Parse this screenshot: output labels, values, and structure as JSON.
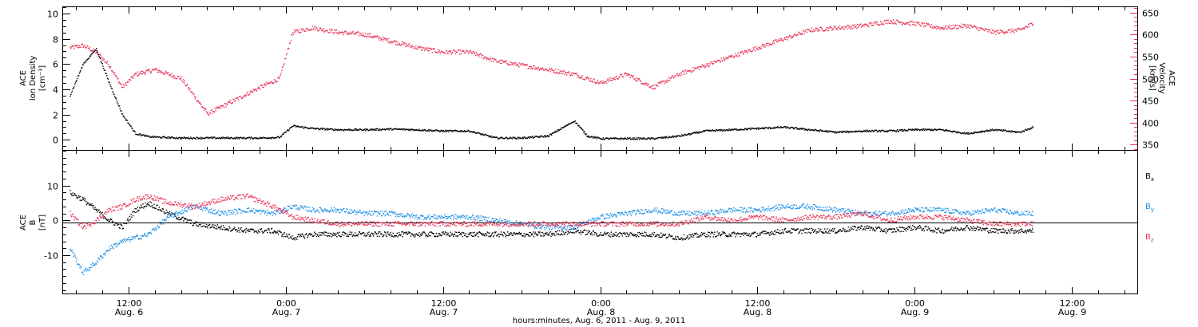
{
  "chart_data": {
    "type": "scatter",
    "xlabel": "hours:minutes, Aug.  6, 2011 - Aug.  9, 2011",
    "x_time_range": [
      "Aug. 6, 2011 07:00",
      "Aug. 9, 2011 17:00"
    ],
    "x_ticks": [
      {
        "time": "12:00",
        "date": "Aug. 6"
      },
      {
        "time": "0:00",
        "date": "Aug. 7"
      },
      {
        "time": "12:00",
        "date": "Aug. 7"
      },
      {
        "time": "0:00",
        "date": "Aug. 8"
      },
      {
        "time": "12:00",
        "date": "Aug. 8"
      },
      {
        "time": "0:00",
        "date": "Aug. 9"
      },
      {
        "time": "12:00",
        "date": "Aug. 9"
      }
    ],
    "x_tick_hours": [
      12,
      24,
      36,
      48,
      60,
      72,
      84
    ],
    "panels": [
      {
        "id": "plasma",
        "left_axis": {
          "label_lines": [
            "ACE",
            "Ion Density",
            "[cm⁻³]"
          ],
          "ylim": [
            -0.8,
            10.5
          ],
          "ticks": [
            0,
            2,
            4,
            6,
            8,
            10
          ]
        },
        "right_axis": {
          "label_lines": [
            "ACE",
            "Velocity",
            "[km/s]"
          ],
          "ylim": [
            338,
            662
          ],
          "ticks": [
            350,
            400,
            450,
            500,
            550,
            600,
            650
          ],
          "color": "#e8365a"
        },
        "series": [
          {
            "axis": "left",
            "color": "#000000",
            "hours": [
              7.5,
              8.5,
              9.5,
              10.5,
              11.5,
              12.5,
              13.5,
              14.5,
              16,
              18,
              20,
              22,
              23.5,
              24.5,
              26,
              28,
              30,
              32,
              34,
              36,
              38,
              40,
              42,
              44,
              46,
              47,
              48,
              50,
              52,
              54,
              56,
              58,
              60,
              62,
              64,
              66,
              68,
              70,
              72,
              74,
              76,
              78,
              80,
              81
            ],
            "values": [
              3.5,
              6.0,
              7.2,
              4.5,
              2.0,
              0.5,
              0.25,
              0.2,
              0.15,
              0.15,
              0.15,
              0.15,
              0.2,
              1.1,
              0.9,
              0.8,
              0.8,
              0.85,
              0.8,
              0.7,
              0.7,
              0.15,
              0.15,
              0.3,
              1.5,
              0.3,
              0.1,
              0.1,
              0.1,
              0.3,
              0.7,
              0.8,
              0.9,
              1.0,
              0.8,
              0.6,
              0.7,
              0.7,
              0.8,
              0.8,
              0.5,
              0.8,
              0.6,
              1.0
            ]
          },
          {
            "axis": "right",
            "color": "#e8365a",
            "hours": [
              7.5,
              8.5,
              9.5,
              10.5,
              11.5,
              12.5,
              14,
              16,
              18,
              20,
              22,
              23.5,
              24.5,
              26,
              28,
              30,
              32,
              34,
              36,
              38,
              40,
              42,
              44,
              46,
              48,
              50,
              52,
              54,
              56,
              58,
              60,
              62,
              64,
              66,
              68,
              70,
              72,
              74,
              76,
              78,
              80,
              81
            ],
            "values": [
              570,
              575,
              560,
              530,
              480,
              510,
              520,
              500,
              420,
              450,
              480,
              500,
              605,
              615,
              605,
              600,
              585,
              570,
              560,
              560,
              540,
              530,
              520,
              510,
              490,
              510,
              480,
              510,
              530,
              550,
              570,
              590,
              610,
              615,
              620,
              630,
              625,
              615,
              620,
              605,
              610,
              625
            ]
          }
        ]
      },
      {
        "id": "magnetic",
        "left_axis": {
          "label_lines": [
            "ACE",
            "B",
            "[nT]"
          ],
          "ylim": [
            -21,
            20
          ],
          "ticks": [
            -10,
            0,
            10
          ],
          "zero_line": true
        },
        "legend": [
          {
            "text": "Bx",
            "base": "B",
            "sub": "x",
            "color": "#000000"
          },
          {
            "text": "By",
            "base": "B",
            "sub": "y",
            "color": "#1e90e6"
          },
          {
            "text": "Bz",
            "base": "B",
            "sub": "z",
            "color": "#e8365a"
          }
        ],
        "series": [
          {
            "name": "Bx",
            "color": "#000000",
            "hours": [
              7.5,
              8.5,
              9.5,
              10.5,
              11.5,
              12.5,
              13.5,
              15,
              17,
              19,
              21,
              23,
              24.5,
              26,
              28,
              30,
              32,
              34,
              36,
              38,
              40,
              42,
              44,
              46,
              48,
              50,
              52,
              54,
              56,
              58,
              60,
              62,
              64,
              66,
              68,
              70,
              72,
              74,
              76,
              78,
              80,
              81
            ],
            "values": [
              8,
              6,
              3,
              0,
              -2,
              3,
              5,
              2,
              -1,
              -2,
              -3,
              -3,
              -5,
              -4,
              -4,
              -4,
              -4,
              -4,
              -4,
              -4,
              -4,
              -4,
              -4,
              -3,
              -4,
              -4,
              -4,
              -5,
              -4,
              -4,
              -4,
              -3,
              -3,
              -3,
              -2,
              -3,
              -2,
              -3,
              -2,
              -3,
              -3,
              -3
            ]
          },
          {
            "name": "By",
            "color": "#1e90e6",
            "hours": [
              7.5,
              8.5,
              9.5,
              10.5,
              11.5,
              12.5,
              13.5,
              15,
              17,
              19,
              21,
              23,
              24.5,
              26,
              28,
              30,
              32,
              34,
              36,
              38,
              40,
              42,
              44,
              46,
              48,
              50,
              52,
              54,
              56,
              58,
              60,
              62,
              64,
              66,
              68,
              70,
              72,
              74,
              76,
              78,
              80,
              81
            ],
            "values": [
              -8,
              -15,
              -12,
              -8,
              -6,
              -5,
              -4,
              1,
              4,
              2,
              3,
              2,
              4,
              3,
              3,
              2,
              2,
              1,
              1,
              1,
              0,
              -1,
              -2,
              -2,
              1,
              2,
              3,
              2,
              2,
              3,
              3,
              4,
              4,
              3,
              2,
              2,
              3,
              3,
              2,
              3,
              2,
              2
            ]
          },
          {
            "name": "Bz",
            "color": "#e8365a",
            "hours": [
              7.5,
              8.5,
              9.5,
              10.5,
              11.5,
              12.5,
              13.5,
              15,
              17,
              19,
              21,
              23,
              24.5,
              26,
              28,
              30,
              32,
              34,
              36,
              38,
              40,
              42,
              44,
              46,
              48,
              50,
              52,
              54,
              56,
              58,
              60,
              62,
              64,
              66,
              68,
              70,
              72,
              74,
              76,
              78,
              80,
              81
            ],
            "values": [
              2,
              -2,
              0,
              3,
              4,
              6,
              7,
              5,
              4,
              6,
              7,
              4,
              1,
              0,
              -1,
              -1,
              -1,
              -1,
              -1,
              -1,
              -1,
              -1,
              -1,
              -1,
              -1,
              -1,
              -1,
              -1,
              1,
              0,
              1,
              0,
              1,
              1,
              2,
              0,
              1,
              1,
              0,
              -1,
              -1,
              -1
            ]
          }
        ]
      }
    ]
  }
}
